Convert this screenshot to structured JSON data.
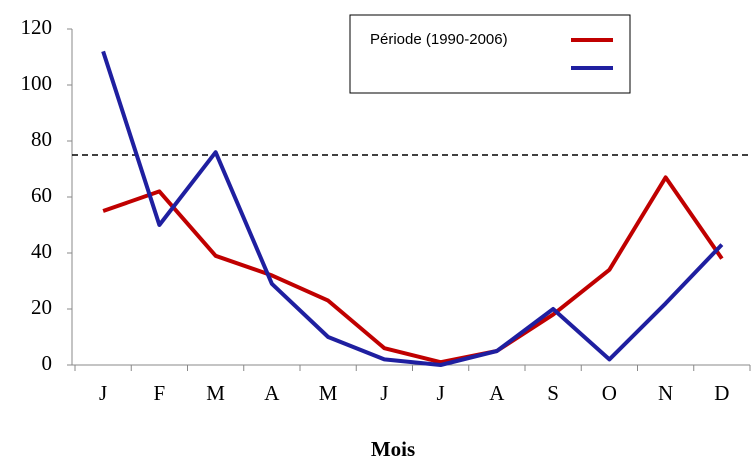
{
  "chart_data": {
    "type": "line",
    "x_label": "Mois",
    "categories": [
      "J",
      "F",
      "M",
      "A",
      "M",
      "J",
      "J",
      "A",
      "S",
      "O",
      "N",
      "D"
    ],
    "series": [
      {
        "name": "Période (1990-2006)",
        "color": "#c00000",
        "values": [
          55,
          62,
          39,
          32,
          23,
          6,
          1,
          5,
          18,
          34,
          67,
          38
        ]
      },
      {
        "name": null,
        "color": "#1f1fa0",
        "values": [
          112,
          50,
          76,
          29,
          10,
          2,
          0,
          5,
          20,
          2,
          22,
          43
        ]
      }
    ],
    "reference_line": 75,
    "ylim": [
      0,
      120
    ],
    "yticks": [
      0,
      20,
      40,
      60,
      80,
      100,
      120
    ],
    "legend": "top-right"
  }
}
